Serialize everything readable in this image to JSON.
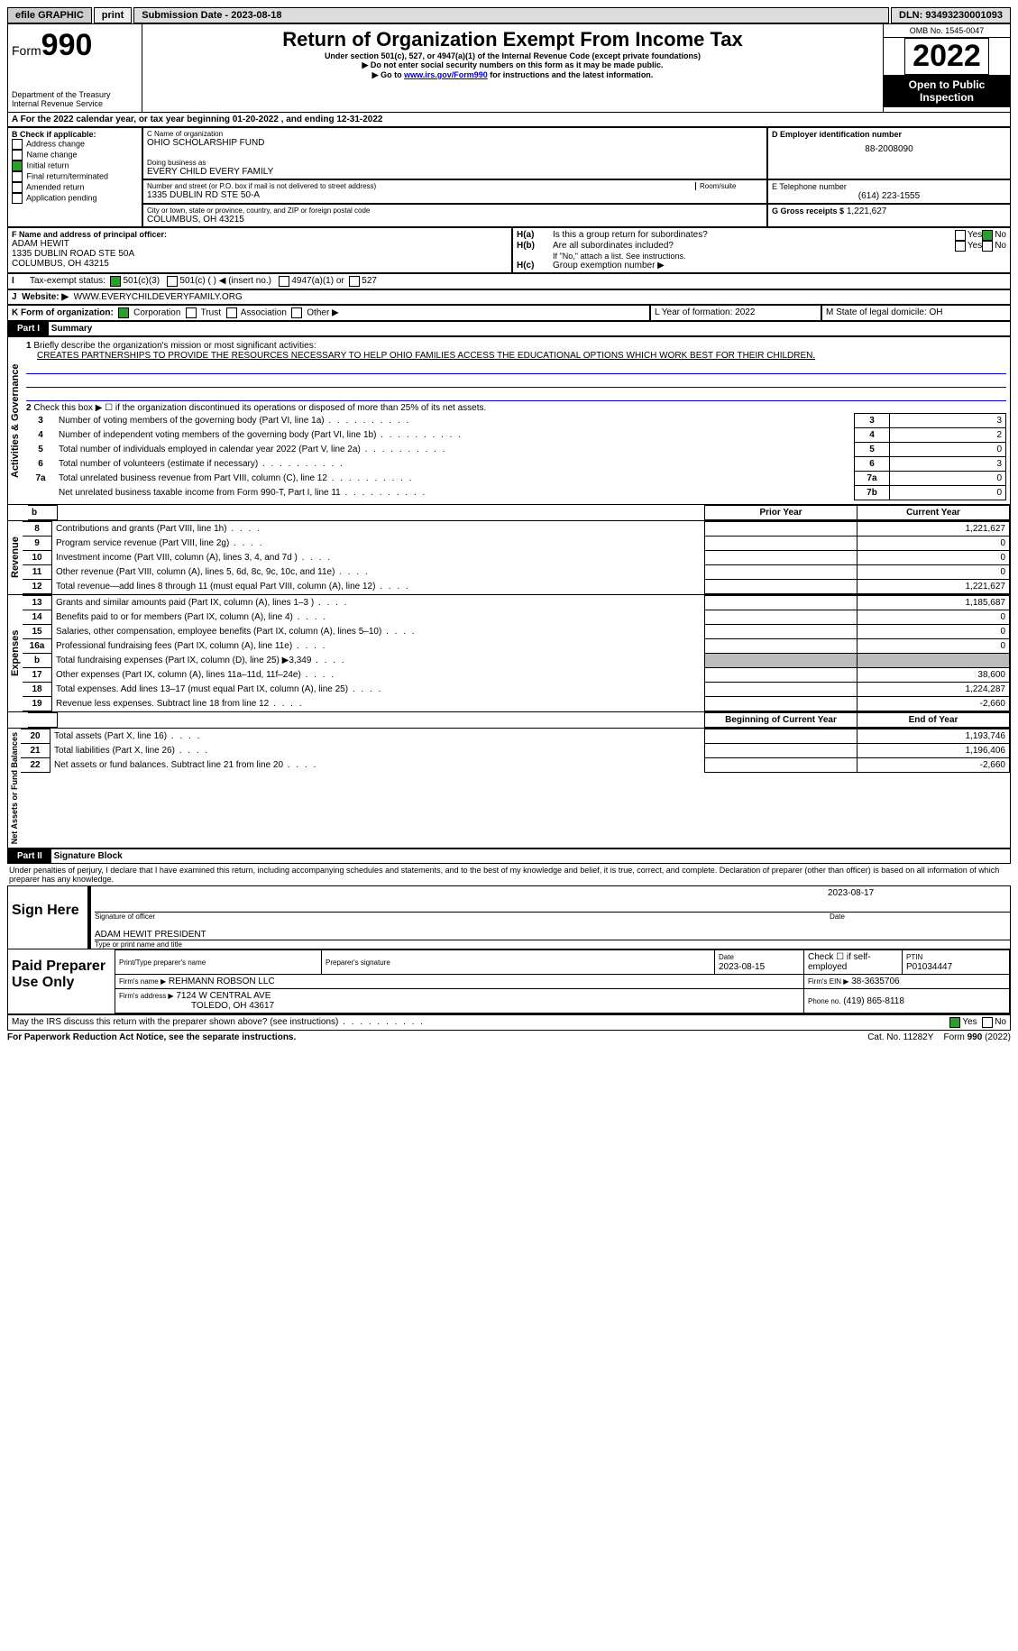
{
  "topbar": {
    "efile_label": "efile GRAPHIC",
    "print_btn": "print",
    "submission_label": "Submission Date - 2023-08-18",
    "dln_label": "DLN: 93493230001093"
  },
  "header": {
    "form_word": "Form",
    "form_no": "990",
    "dept": "Department of the Treasury",
    "irs": "Internal Revenue Service",
    "title": "Return of Organization Exempt From Income Tax",
    "subtitle": "Under section 501(c), 527, or 4947(a)(1) of the Internal Revenue Code (except private foundations)",
    "note1": "Do not enter social security numbers on this form as it may be made public.",
    "note2_pre": "Go to ",
    "note2_link": "www.irs.gov/Form990",
    "note2_post": " for instructions and the latest information.",
    "omb": "OMB No. 1545-0047",
    "year": "2022",
    "inspect": "Open to Public Inspection"
  },
  "periodA": {
    "label_pre": "For the 2022 calendar year, or tax year beginning ",
    "begin": "01-20-2022",
    "mid": " , and ending ",
    "end": "12-31-2022"
  },
  "boxB": {
    "label": "B Check if applicable:",
    "opts": [
      "Address change",
      "Name change",
      "Initial return",
      "Final return/terminated",
      "Amended return",
      "Application pending"
    ],
    "checked_idx": 2
  },
  "boxC": {
    "name_lbl": "C Name of organization",
    "name": "OHIO SCHOLARSHIP FUND",
    "dba_lbl": "Doing business as",
    "dba": "EVERY CHILD EVERY FAMILY",
    "street_lbl": "Number and street (or P.O. box if mail is not delivered to street address)",
    "room_lbl": "Room/suite",
    "street": "1335 DUBLIN RD STE 50-A",
    "city_lbl": "City or town, state or province, country, and ZIP or foreign postal code",
    "city": "COLUMBUS, OH  43215"
  },
  "boxD": {
    "lbl": "D Employer identification number",
    "val": "88-2008090"
  },
  "boxE": {
    "lbl": "E Telephone number",
    "val": "(614) 223-1555"
  },
  "boxG": {
    "lbl": "G Gross receipts $",
    "val": "1,221,627"
  },
  "boxF": {
    "lbl": "F  Name and address of principal officer:",
    "name": "ADAM HEWIT",
    "addr1": "1335 DUBLIN ROAD STE 50A",
    "addr2": "COLUMBUS, OH  43215"
  },
  "boxH": {
    "a": "Is this a group return for subordinates?",
    "b": "Are all subordinates included?",
    "note": "If \"No,\" attach a list. See instructions.",
    "c": "Group exemption number ▶",
    "yes": "Yes",
    "no": "No"
  },
  "boxI": {
    "lbl": "Tax-exempt status:",
    "opts": [
      "501(c)(3)",
      "501(c) (  ) ◀ (insert no.)",
      "4947(a)(1) or",
      "527"
    ]
  },
  "boxJ": {
    "lbl": "Website: ▶",
    "val": "WWW.EVERYCHILDEVERYFAMILY.ORG"
  },
  "boxK": {
    "lbl": "K Form of organization:",
    "opts": [
      "Corporation",
      "Trust",
      "Association",
      "Other ▶"
    ]
  },
  "boxL": {
    "lbl": "L Year of formation: 2022"
  },
  "boxM": {
    "lbl": "M State of legal domicile: OH"
  },
  "part1": {
    "hdr": "Part I",
    "title": "Summary",
    "q1_lbl": "Briefly describe the organization's mission or most significant activities:",
    "q1_val": "CREATES PARTNERSHIPS TO PROVIDE THE RESOURCES NECESSARY TO HELP OHIO FAMILIES ACCESS THE EDUCATIONAL OPTIONS WHICH WORK BEST FOR THEIR CHILDREN.",
    "q2": "Check this box ▶ ☐ if the organization discontinued its operations or disposed of more than 25% of its net assets.",
    "lines_ag": [
      {
        "n": "3",
        "t": "Number of voting members of the governing body (Part VI, line 1a)",
        "box": "3",
        "v": "3"
      },
      {
        "n": "4",
        "t": "Number of independent voting members of the governing body (Part VI, line 1b)",
        "box": "4",
        "v": "2"
      },
      {
        "n": "5",
        "t": "Total number of individuals employed in calendar year 2022 (Part V, line 2a)",
        "box": "5",
        "v": "0"
      },
      {
        "n": "6",
        "t": "Total number of volunteers (estimate if necessary)",
        "box": "6",
        "v": "3"
      },
      {
        "n": "7a",
        "t": "Total unrelated business revenue from Part VIII, column (C), line 12",
        "box": "7a",
        "v": "0"
      },
      {
        "n": "",
        "t": "Net unrelated business taxable income from Form 990-T, Part I, line 11",
        "box": "7b",
        "v": "0"
      }
    ],
    "col_prior": "Prior Year",
    "col_curr": "Current Year",
    "rev": [
      {
        "n": "8",
        "t": "Contributions and grants (Part VIII, line 1h)",
        "p": "",
        "c": "1,221,627"
      },
      {
        "n": "9",
        "t": "Program service revenue (Part VIII, line 2g)",
        "p": "",
        "c": "0"
      },
      {
        "n": "10",
        "t": "Investment income (Part VIII, column (A), lines 3, 4, and 7d )",
        "p": "",
        "c": "0"
      },
      {
        "n": "11",
        "t": "Other revenue (Part VIII, column (A), lines 5, 6d, 8c, 9c, 10c, and 11e)",
        "p": "",
        "c": "0"
      },
      {
        "n": "12",
        "t": "Total revenue—add lines 8 through 11 (must equal Part VIII, column (A), line 12)",
        "p": "",
        "c": "1,221,627"
      }
    ],
    "exp": [
      {
        "n": "13",
        "t": "Grants and similar amounts paid (Part IX, column (A), lines 1–3 )",
        "p": "",
        "c": "1,185,687"
      },
      {
        "n": "14",
        "t": "Benefits paid to or for members (Part IX, column (A), line 4)",
        "p": "",
        "c": "0"
      },
      {
        "n": "15",
        "t": "Salaries, other compensation, employee benefits (Part IX, column (A), lines 5–10)",
        "p": "",
        "c": "0"
      },
      {
        "n": "16a",
        "t": "Professional fundraising fees (Part IX, column (A), line 11e)",
        "p": "",
        "c": "0"
      },
      {
        "n": "b",
        "t": "Total fundraising expenses (Part IX, column (D), line 25) ▶3,349",
        "p": "shade",
        "c": "shade"
      },
      {
        "n": "17",
        "t": "Other expenses (Part IX, column (A), lines 11a–11d, 11f–24e)",
        "p": "",
        "c": "38,600"
      },
      {
        "n": "18",
        "t": "Total expenses. Add lines 13–17 (must equal Part IX, column (A), line 25)",
        "p": "",
        "c": "1,224,287"
      },
      {
        "n": "19",
        "t": "Revenue less expenses. Subtract line 18 from line 12",
        "p": "",
        "c": "-2,660"
      }
    ],
    "col_begin": "Beginning of Current Year",
    "col_end": "End of Year",
    "na": [
      {
        "n": "20",
        "t": "Total assets (Part X, line 16)",
        "p": "",
        "c": "1,193,746"
      },
      {
        "n": "21",
        "t": "Total liabilities (Part X, line 26)",
        "p": "",
        "c": "1,196,406"
      },
      {
        "n": "22",
        "t": "Net assets or fund balances. Subtract line 21 from line 20",
        "p": "",
        "c": "-2,660"
      }
    ],
    "vlabels": [
      "Activities & Governance",
      "Revenue",
      "Expenses",
      "Net Assets or Fund Balances"
    ]
  },
  "part2": {
    "hdr": "Part II",
    "title": "Signature Block",
    "decl": "Under penalties of perjury, I declare that I have examined this return, including accompanying schedules and statements, and to the best of my knowledge and belief, it is true, correct, and complete. Declaration of preparer (other than officer) is based on all information of which preparer has any knowledge.",
    "sign_here": "Sign Here",
    "sig_officer": "Signature of officer",
    "date_lbl": "Date",
    "sig_date": "2023-08-17",
    "name_title": "ADAM HEWIT PRESIDENT",
    "type_name": "Type or print name and title",
    "paid": "Paid Preparer Use Only",
    "prep_name_lbl": "Print/Type preparer's name",
    "prep_sig_lbl": "Preparer's signature",
    "prep_date_lbl": "Date",
    "prep_date": "2023-08-15",
    "self_emp": "Check ☐ if self-employed",
    "ptin_lbl": "PTIN",
    "ptin": "P01034447",
    "firm_name_lbl": "Firm's name   ▶",
    "firm_name": "REHMANN ROBSON LLC",
    "firm_ein_lbl": "Firm's EIN ▶",
    "firm_ein": "38-3635706",
    "firm_addr_lbl": "Firm's address ▶",
    "firm_addr1": "7124 W CENTRAL AVE",
    "firm_addr2": "TOLEDO, OH  43617",
    "phone_lbl": "Phone no.",
    "phone": "(419) 865-8118",
    "discuss": "May the IRS discuss this return with the preparer shown above? (see instructions)",
    "yes": "Yes",
    "no": "No"
  },
  "footer": {
    "pra": "For Paperwork Reduction Act Notice, see the separate instructions.",
    "cat": "Cat. No. 11282Y",
    "form": "Form 990 (2022)"
  }
}
